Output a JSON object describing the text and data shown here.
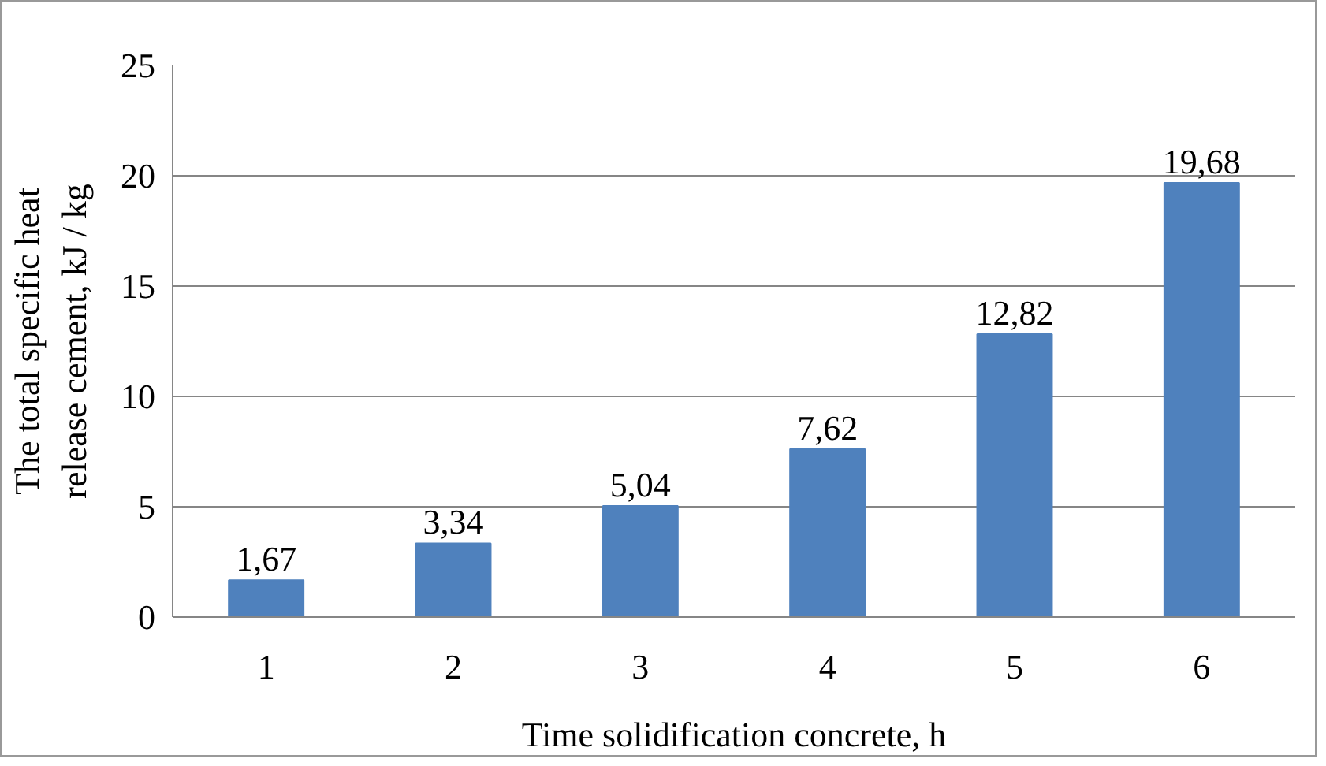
{
  "chart_data": {
    "type": "bar",
    "xlabel": "Time solidification concrete, h",
    "ylabel": "The total specific heat release cement, kJ / kg",
    "categories": [
      "1",
      "2",
      "3",
      "4",
      "5",
      "6"
    ],
    "values": [
      1.67,
      3.34,
      5.04,
      7.62,
      12.82,
      19.68
    ],
    "value_labels": [
      "1,67",
      "3,34",
      "5,04",
      "7,62",
      "12,82",
      "19,68"
    ],
    "color": "#4f81bd",
    "ylim": [
      0,
      25
    ],
    "yticks": [
      0,
      5,
      10,
      15,
      20,
      25
    ],
    "grid": "y"
  }
}
